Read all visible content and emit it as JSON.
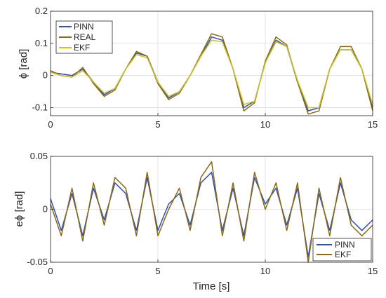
{
  "chart_data": [
    {
      "type": "line",
      "title": "",
      "xlabel": "",
      "ylabel": "ϕ [rad]",
      "xlim": [
        0,
        15
      ],
      "ylim": [
        -0.125,
        0.2
      ],
      "xticks": [
        0,
        5,
        10,
        15
      ],
      "yticks": [
        -0.1,
        0,
        0.1,
        0.2
      ],
      "xtick_labels": [
        "0",
        "5",
        "10",
        "15"
      ],
      "ytick_labels": [
        "-0.1",
        "0",
        "0.1",
        "0.2"
      ],
      "grid": true,
      "legend_position": "top-left",
      "series": [
        {
          "name": "PINN",
          "color": "#2f4fb5",
          "x": [
            0,
            0.5,
            1,
            1.5,
            2,
            2.5,
            3,
            3.5,
            4,
            4.5,
            5,
            5.5,
            6,
            6.5,
            7,
            7.5,
            8,
            8.5,
            9,
            9.5,
            10,
            10.5,
            11,
            11.5,
            12,
            12.5,
            13,
            13.5,
            14,
            14.5,
            15
          ],
          "y": [
            0.01,
            0.005,
            0.0,
            0.02,
            -0.02,
            -0.06,
            -0.04,
            0.02,
            0.07,
            0.06,
            -0.02,
            -0.07,
            -0.05,
            0.0,
            0.06,
            0.12,
            0.11,
            0.02,
            -0.1,
            -0.08,
            0.04,
            0.11,
            0.09,
            -0.02,
            -0.11,
            -0.1,
            0.02,
            0.08,
            0.08,
            0.02,
            -0.1
          ]
        },
        {
          "name": "REAL",
          "color": "#8a6a14",
          "x": [
            0,
            0.5,
            1,
            1.5,
            2,
            2.5,
            3,
            3.5,
            4,
            4.5,
            5,
            5.5,
            6,
            6.5,
            7,
            7.5,
            8,
            8.5,
            9,
            9.5,
            10,
            10.5,
            11,
            11.5,
            12,
            12.5,
            13,
            13.5,
            14,
            14.5,
            15
          ],
          "y": [
            0.015,
            0.0,
            -0.005,
            0.025,
            -0.025,
            -0.065,
            -0.045,
            0.02,
            0.075,
            0.06,
            -0.025,
            -0.075,
            -0.055,
            0.0,
            0.065,
            0.13,
            0.12,
            0.02,
            -0.11,
            -0.085,
            0.045,
            0.12,
            0.095,
            -0.02,
            -0.12,
            -0.11,
            0.02,
            0.09,
            0.09,
            0.02,
            -0.11
          ]
        },
        {
          "name": "EKF",
          "color": "#c9c42a",
          "x": [
            0,
            0.5,
            1,
            1.5,
            2,
            2.5,
            3,
            3.5,
            4,
            4.5,
            5,
            5.5,
            6,
            6.5,
            7,
            7.5,
            8,
            8.5,
            9,
            9.5,
            10,
            10.5,
            11,
            11.5,
            12,
            12.5,
            13,
            13.5,
            14,
            14.5,
            15
          ],
          "y": [
            0.01,
            0.0,
            -0.005,
            0.015,
            -0.02,
            -0.055,
            -0.04,
            0.02,
            0.065,
            0.055,
            -0.02,
            -0.065,
            -0.05,
            0.0,
            0.06,
            0.11,
            0.105,
            0.02,
            -0.09,
            -0.08,
            0.04,
            0.105,
            0.09,
            -0.015,
            -0.1,
            -0.1,
            0.02,
            0.08,
            0.08,
            0.02,
            -0.09
          ]
        }
      ]
    },
    {
      "type": "line",
      "title": "",
      "xlabel": "Time [s]",
      "ylabel": "eϕ [rad]",
      "xlim": [
        0,
        15
      ],
      "ylim": [
        -0.05,
        0.05
      ],
      "xticks": [
        0,
        5,
        10,
        15
      ],
      "yticks": [
        -0.05,
        0,
        0.05
      ],
      "xtick_labels": [
        "0",
        "5",
        "10",
        "15"
      ],
      "ytick_labels": [
        "-0.05",
        "0",
        "0.05"
      ],
      "grid": true,
      "legend_position": "bottom-right",
      "series": [
        {
          "name": "PINN",
          "color": "#2f4fb5",
          "x": [
            0,
            0.5,
            1,
            1.5,
            2,
            2.5,
            3,
            3.5,
            4,
            4.5,
            5,
            5.5,
            6,
            6.5,
            7,
            7.5,
            8,
            8.5,
            9,
            9.5,
            10,
            10.5,
            11,
            11.5,
            12,
            12.5,
            13,
            13.5,
            14,
            14.5,
            15
          ],
          "y": [
            0.01,
            -0.02,
            0.015,
            -0.025,
            0.02,
            -0.01,
            0.025,
            0.015,
            -0.02,
            0.03,
            -0.02,
            0.005,
            0.015,
            -0.015,
            0.025,
            0.035,
            -0.02,
            0.02,
            -0.025,
            0.03,
            0.005,
            0.02,
            -0.015,
            0.02,
            -0.045,
            0.015,
            -0.02,
            0.025,
            -0.01,
            -0.02,
            -0.01
          ]
        },
        {
          "name": "EKF",
          "color": "#8a6a14",
          "x": [
            0,
            0.5,
            1,
            1.5,
            2,
            2.5,
            3,
            3.5,
            4,
            4.5,
            5,
            5.5,
            6,
            6.5,
            7,
            7.5,
            8,
            8.5,
            9,
            9.5,
            10,
            10.5,
            11,
            11.5,
            12,
            12.5,
            13,
            13.5,
            14,
            14.5,
            15
          ],
          "y": [
            0.005,
            -0.025,
            0.02,
            -0.03,
            0.025,
            -0.015,
            0.03,
            0.02,
            -0.025,
            0.035,
            -0.025,
            0.0,
            0.02,
            -0.02,
            0.03,
            0.045,
            -0.025,
            0.025,
            -0.03,
            0.035,
            0.0,
            0.025,
            -0.02,
            0.025,
            -0.05,
            0.02,
            -0.025,
            0.03,
            -0.015,
            -0.025,
            -0.015
          ]
        }
      ]
    }
  ]
}
